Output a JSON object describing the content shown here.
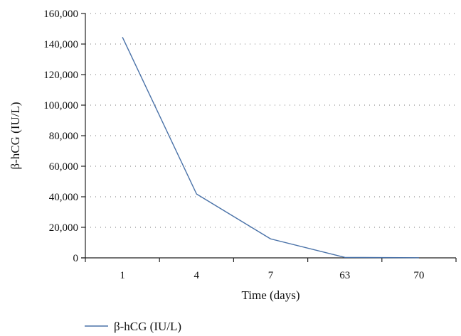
{
  "chart_data": {
    "type": "line",
    "categories": [
      "1",
      "4",
      "7",
      "63",
      "70"
    ],
    "series": [
      {
        "name": "β-hCG (IU/L)",
        "values": [
          144500,
          41800,
          12400,
          300,
          100
        ],
        "color": "#4a72a8"
      }
    ],
    "xlabel": "Time (days)",
    "ylabel": "β-hCG (IU/L)",
    "yticks": [
      "0",
      "20,000",
      "40,000",
      "60,000",
      "80,000",
      "100,000",
      "120,000",
      "140,000",
      "160,000"
    ],
    "ylim": [
      0,
      160000
    ],
    "grid": true,
    "grid_style": "dotted",
    "legend_position": "bottom-left"
  }
}
